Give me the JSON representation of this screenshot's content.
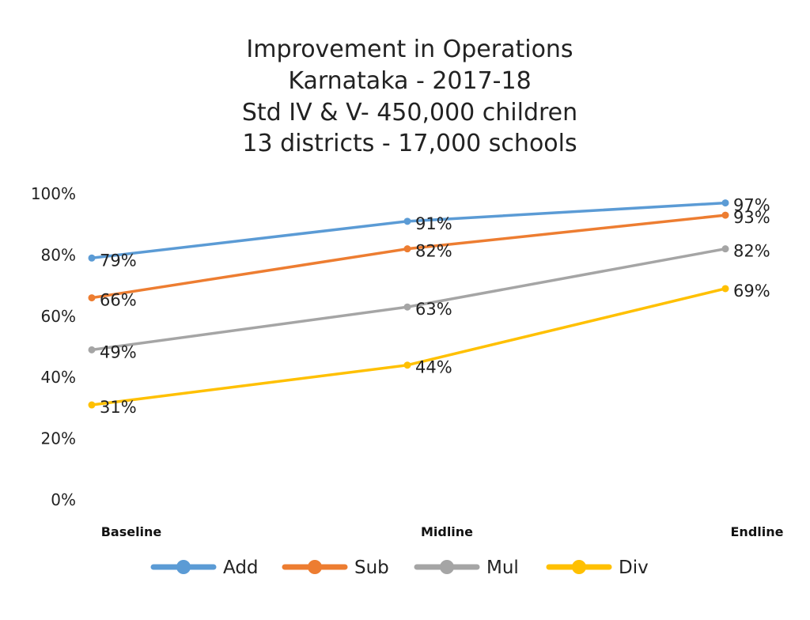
{
  "chart_data": {
    "type": "line",
    "title_lines": [
      "Improvement in Operations",
      "Karnataka - 2017-18",
      "Std IV & V- 450,000 children",
      "13 districts - 17,000 schools"
    ],
    "categories": [
      "Baseline",
      "Midline",
      "Endline"
    ],
    "y_ticks": [
      "0%",
      "20%",
      "40%",
      "60%",
      "80%",
      "100%"
    ],
    "ylim": [
      0,
      100
    ],
    "grid": false,
    "legend_position": "bottom",
    "series": [
      {
        "name": "Add",
        "color": "#5b9bd5",
        "values": [
          79,
          91,
          97
        ],
        "labels": [
          "79%",
          "91%",
          "97%"
        ]
      },
      {
        "name": "Sub",
        "color": "#ed7d31",
        "values": [
          66,
          82,
          93
        ],
        "labels": [
          "66%",
          "82%",
          "93%"
        ]
      },
      {
        "name": "Mul",
        "color": "#a5a5a5",
        "values": [
          49,
          63,
          82
        ],
        "labels": [
          "49%",
          "63%",
          "82%"
        ]
      },
      {
        "name": "Div",
        "color": "#ffc000",
        "values": [
          31,
          44,
          69
        ],
        "labels": [
          "31%",
          "44%",
          "69%"
        ]
      }
    ]
  }
}
